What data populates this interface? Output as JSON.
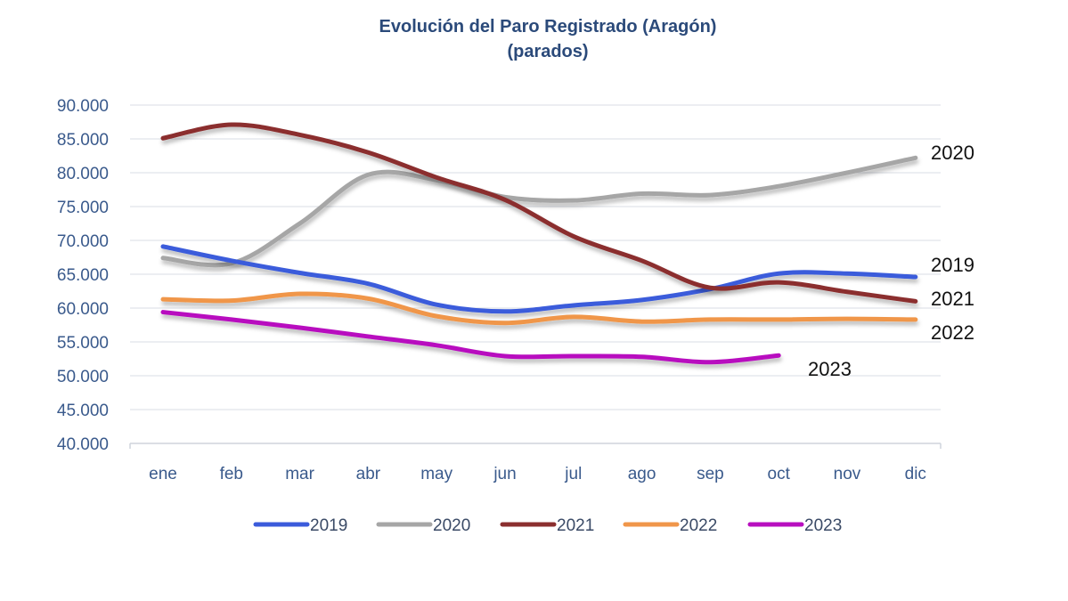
{
  "chart_data": {
    "type": "line",
    "title": "Evolución del Paro Registrado (Aragón)",
    "subtitle": "(parados)",
    "xlabel": "",
    "ylabel": "",
    "categories": [
      "ene",
      "feb",
      "mar",
      "abr",
      "may",
      "jun",
      "jul",
      "ago",
      "sep",
      "oct",
      "nov",
      "dic"
    ],
    "ylim": [
      40000,
      90000
    ],
    "yticks": [
      40000,
      45000,
      50000,
      55000,
      60000,
      65000,
      70000,
      75000,
      80000,
      85000,
      90000
    ],
    "ytick_labels": [
      "40.000",
      "45.000",
      "50.000",
      "55.000",
      "60.000",
      "65.000",
      "70.000",
      "75.000",
      "80.000",
      "85.000",
      "90.000"
    ],
    "grid": true,
    "legend_position": "bottom",
    "series": [
      {
        "name": "2019",
        "color": "#3b5bdb",
        "end_label": "2019",
        "values": [
          69100,
          67000,
          65200,
          63600,
          60500,
          59500,
          60400,
          61200,
          62800,
          65100,
          65100,
          64600
        ]
      },
      {
        "name": "2020",
        "color": "#a6a6a6",
        "end_label": "2020",
        "values": [
          67400,
          66600,
          72500,
          79700,
          78900,
          76400,
          75900,
          76900,
          76700,
          78000,
          80000,
          82200
        ]
      },
      {
        "name": "2021",
        "color": "#8b2f2f",
        "end_label": "2021",
        "values": [
          85100,
          87100,
          85600,
          83000,
          79300,
          76000,
          70600,
          67000,
          63000,
          63800,
          62400,
          61000
        ]
      },
      {
        "name": "2022",
        "color": "#f0964a",
        "end_label": "2022",
        "values": [
          61300,
          61100,
          62100,
          61400,
          58800,
          57800,
          58700,
          58000,
          58300,
          58300,
          58400,
          58300
        ]
      },
      {
        "name": "2023",
        "color": "#b80fbf",
        "end_label": "2023",
        "values": [
          59400,
          58300,
          57100,
          55800,
          54500,
          52900,
          52900,
          52800,
          52000,
          53000,
          null,
          null
        ]
      }
    ]
  }
}
